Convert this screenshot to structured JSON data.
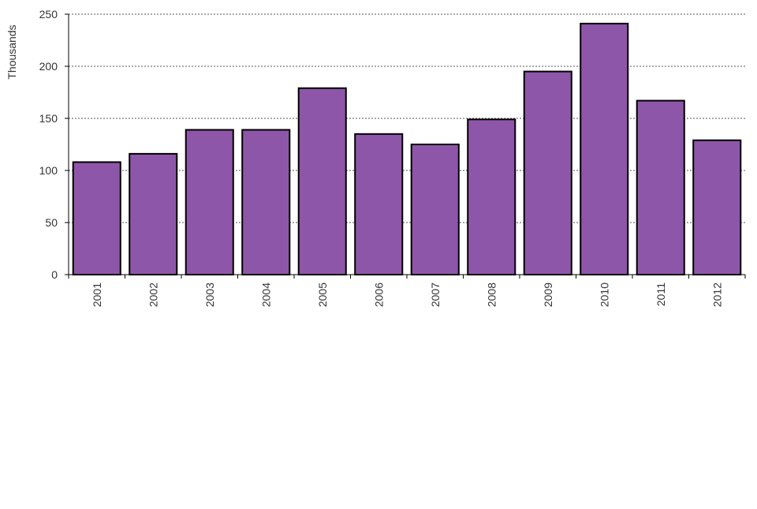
{
  "chart_data": {
    "type": "bar",
    "categories": [
      "2001",
      "2002",
      "2003",
      "2004",
      "2005",
      "2006",
      "2007",
      "2008",
      "2009",
      "2010",
      "2011",
      "2012"
    ],
    "values": [
      108,
      116,
      139,
      139,
      179,
      135,
      125,
      149,
      195,
      241,
      167,
      129
    ],
    "title": "",
    "xlabel": "",
    "ylabel": "Thousands",
    "ylim": [
      0,
      250
    ],
    "yticks": [
      0,
      50,
      100,
      150,
      200,
      250
    ],
    "grid": true,
    "legend": "none",
    "colors": {
      "bar_fill": "#8e56a8",
      "bar_stroke": "#000000",
      "grid": "#555555",
      "axis": "#000000",
      "text": "#333333"
    }
  }
}
